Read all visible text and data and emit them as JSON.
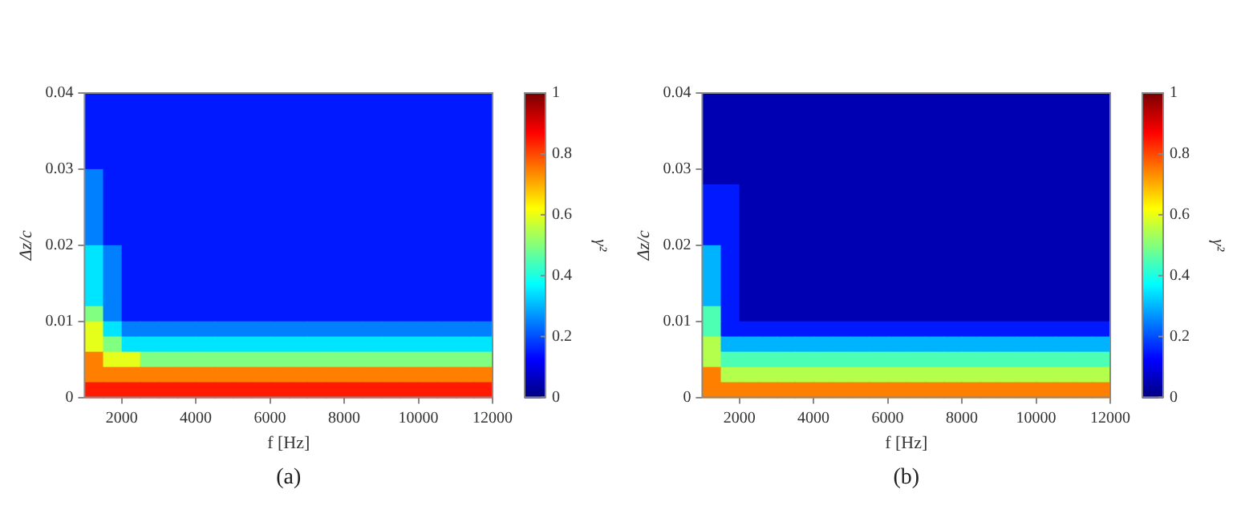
{
  "chart_data": [
    {
      "type": "heatmap",
      "xlabel": "f [Hz]",
      "ylabel": "Δz/c",
      "clabel": "γ²",
      "annotations": [
        "(a)"
      ],
      "x": [
        1250,
        1750,
        2250,
        2750,
        3250,
        3750,
        4250,
        4750,
        5250,
        5750,
        6250,
        6750,
        7250,
        7750,
        8250,
        8750,
        9250,
        9750,
        10250,
        10750,
        11250,
        11750
      ],
      "y": [
        0.039,
        0.037,
        0.035,
        0.033,
        0.031,
        0.029,
        0.027,
        0.025,
        0.023,
        0.021,
        0.019,
        0.017,
        0.015,
        0.013,
        0.011,
        0.009,
        0.007,
        0.005,
        0.003,
        0.001
      ],
      "xlim": [
        1000,
        12000
      ],
      "ylim": [
        0,
        0.04
      ],
      "xticks": [
        2000,
        4000,
        6000,
        8000,
        10000,
        12000
      ],
      "yticks": [
        0,
        0.01,
        0.02,
        0.03,
        0.04
      ],
      "clim": [
        0,
        1
      ],
      "cticks": [
        0,
        0.2,
        0.4,
        0.6,
        0.8,
        1
      ],
      "cells": [
        [
          0.15,
          0.15,
          0.15,
          0.15,
          0.15,
          0.15,
          0.15,
          0.15,
          0.15,
          0.15,
          0.15,
          0.15,
          0.15,
          0.15,
          0.15,
          0.15,
          0.15,
          0.15,
          0.15,
          0.15,
          0.15,
          0.15
        ],
        [
          0.15,
          0.15,
          0.15,
          0.15,
          0.15,
          0.15,
          0.15,
          0.15,
          0.15,
          0.15,
          0.15,
          0.15,
          0.15,
          0.15,
          0.15,
          0.15,
          0.15,
          0.15,
          0.15,
          0.15,
          0.15,
          0.15
        ],
        [
          0.15,
          0.15,
          0.15,
          0.15,
          0.15,
          0.15,
          0.15,
          0.15,
          0.15,
          0.15,
          0.15,
          0.15,
          0.15,
          0.15,
          0.15,
          0.15,
          0.15,
          0.15,
          0.15,
          0.15,
          0.15,
          0.15
        ],
        [
          0.15,
          0.15,
          0.15,
          0.15,
          0.15,
          0.15,
          0.15,
          0.15,
          0.15,
          0.15,
          0.15,
          0.15,
          0.15,
          0.15,
          0.15,
          0.15,
          0.15,
          0.15,
          0.15,
          0.15,
          0.15,
          0.15
        ],
        [
          0.15,
          0.15,
          0.15,
          0.15,
          0.15,
          0.15,
          0.15,
          0.15,
          0.15,
          0.15,
          0.15,
          0.15,
          0.15,
          0.15,
          0.15,
          0.15,
          0.15,
          0.15,
          0.15,
          0.15,
          0.15,
          0.15
        ],
        [
          0.25,
          0.15,
          0.15,
          0.15,
          0.15,
          0.15,
          0.15,
          0.15,
          0.15,
          0.15,
          0.15,
          0.15,
          0.15,
          0.15,
          0.15,
          0.15,
          0.15,
          0.15,
          0.15,
          0.15,
          0.15,
          0.15
        ],
        [
          0.25,
          0.15,
          0.15,
          0.15,
          0.15,
          0.15,
          0.15,
          0.15,
          0.15,
          0.15,
          0.15,
          0.15,
          0.15,
          0.15,
          0.15,
          0.15,
          0.15,
          0.15,
          0.15,
          0.15,
          0.15,
          0.15
        ],
        [
          0.25,
          0.15,
          0.15,
          0.15,
          0.15,
          0.15,
          0.15,
          0.15,
          0.15,
          0.15,
          0.15,
          0.15,
          0.15,
          0.15,
          0.15,
          0.15,
          0.15,
          0.15,
          0.15,
          0.15,
          0.15,
          0.15
        ],
        [
          0.25,
          0.15,
          0.15,
          0.15,
          0.15,
          0.15,
          0.15,
          0.15,
          0.15,
          0.15,
          0.15,
          0.15,
          0.15,
          0.15,
          0.15,
          0.15,
          0.15,
          0.15,
          0.15,
          0.15,
          0.15,
          0.15
        ],
        [
          0.25,
          0.15,
          0.15,
          0.15,
          0.15,
          0.15,
          0.15,
          0.15,
          0.15,
          0.15,
          0.15,
          0.15,
          0.15,
          0.15,
          0.15,
          0.15,
          0.15,
          0.15,
          0.15,
          0.15,
          0.15,
          0.15
        ],
        [
          0.35,
          0.25,
          0.15,
          0.15,
          0.15,
          0.15,
          0.15,
          0.15,
          0.15,
          0.15,
          0.15,
          0.15,
          0.15,
          0.15,
          0.15,
          0.15,
          0.15,
          0.15,
          0.15,
          0.15,
          0.15,
          0.15
        ],
        [
          0.35,
          0.25,
          0.15,
          0.15,
          0.15,
          0.15,
          0.15,
          0.15,
          0.15,
          0.15,
          0.15,
          0.15,
          0.15,
          0.15,
          0.15,
          0.15,
          0.15,
          0.15,
          0.15,
          0.15,
          0.15,
          0.15
        ],
        [
          0.35,
          0.25,
          0.15,
          0.15,
          0.15,
          0.15,
          0.15,
          0.15,
          0.15,
          0.15,
          0.15,
          0.15,
          0.15,
          0.15,
          0.15,
          0.15,
          0.15,
          0.15,
          0.15,
          0.15,
          0.15,
          0.15
        ],
        [
          0.35,
          0.25,
          0.15,
          0.15,
          0.15,
          0.15,
          0.15,
          0.15,
          0.15,
          0.15,
          0.15,
          0.15,
          0.15,
          0.15,
          0.15,
          0.15,
          0.15,
          0.15,
          0.15,
          0.15,
          0.15,
          0.15
        ],
        [
          0.5,
          0.25,
          0.15,
          0.15,
          0.15,
          0.15,
          0.15,
          0.15,
          0.15,
          0.15,
          0.15,
          0.15,
          0.15,
          0.15,
          0.15,
          0.15,
          0.15,
          0.15,
          0.15,
          0.15,
          0.15,
          0.15
        ],
        [
          0.6,
          0.35,
          0.25,
          0.25,
          0.25,
          0.25,
          0.25,
          0.25,
          0.25,
          0.25,
          0.25,
          0.25,
          0.25,
          0.25,
          0.25,
          0.25,
          0.25,
          0.25,
          0.25,
          0.25,
          0.25,
          0.25
        ],
        [
          0.6,
          0.5,
          0.35,
          0.35,
          0.35,
          0.35,
          0.35,
          0.35,
          0.35,
          0.35,
          0.35,
          0.35,
          0.35,
          0.35,
          0.35,
          0.35,
          0.35,
          0.35,
          0.35,
          0.35,
          0.35,
          0.35
        ],
        [
          0.75,
          0.6,
          0.6,
          0.5,
          0.5,
          0.5,
          0.5,
          0.5,
          0.5,
          0.5,
          0.5,
          0.5,
          0.5,
          0.5,
          0.5,
          0.5,
          0.5,
          0.5,
          0.5,
          0.5,
          0.5,
          0.5
        ],
        [
          0.75,
          0.75,
          0.75,
          0.75,
          0.75,
          0.75,
          0.75,
          0.75,
          0.75,
          0.75,
          0.75,
          0.75,
          0.75,
          0.75,
          0.75,
          0.75,
          0.75,
          0.75,
          0.75,
          0.75,
          0.75,
          0.75
        ],
        [
          0.85,
          0.85,
          0.85,
          0.85,
          0.85,
          0.85,
          0.85,
          0.85,
          0.85,
          0.85,
          0.85,
          0.85,
          0.85,
          0.85,
          0.85,
          0.85,
          0.85,
          0.85,
          0.85,
          0.85,
          0.85,
          0.85
        ]
      ]
    },
    {
      "type": "heatmap",
      "xlabel": "f [Hz]",
      "ylabel": "Δz/c",
      "clabel": "γ²",
      "annotations": [
        "(b)"
      ],
      "x": [
        1250,
        1750,
        2250,
        2750,
        3250,
        3750,
        4250,
        4750,
        5250,
        5750,
        6250,
        6750,
        7250,
        7750,
        8250,
        8750,
        9250,
        9750,
        10250,
        10750,
        11250,
        11750
      ],
      "y": [
        0.039,
        0.037,
        0.035,
        0.033,
        0.031,
        0.029,
        0.027,
        0.025,
        0.023,
        0.021,
        0.019,
        0.017,
        0.015,
        0.013,
        0.011,
        0.009,
        0.007,
        0.005,
        0.003,
        0.001
      ],
      "xlim": [
        1000,
        12000
      ],
      "ylim": [
        0,
        0.04
      ],
      "xticks": [
        2000,
        4000,
        6000,
        8000,
        10000,
        12000
      ],
      "yticks": [
        0,
        0.01,
        0.02,
        0.03,
        0.04
      ],
      "clim": [
        0,
        1
      ],
      "cticks": [
        0,
        0.2,
        0.4,
        0.6,
        0.8,
        1
      ],
      "cells": [
        [
          0.05,
          0.05,
          0.05,
          0.05,
          0.05,
          0.05,
          0.05,
          0.05,
          0.05,
          0.05,
          0.05,
          0.05,
          0.05,
          0.05,
          0.05,
          0.05,
          0.05,
          0.05,
          0.05,
          0.05,
          0.05,
          0.05
        ],
        [
          0.05,
          0.05,
          0.05,
          0.05,
          0.05,
          0.05,
          0.05,
          0.05,
          0.05,
          0.05,
          0.05,
          0.05,
          0.05,
          0.05,
          0.05,
          0.05,
          0.05,
          0.05,
          0.05,
          0.05,
          0.05,
          0.05
        ],
        [
          0.05,
          0.05,
          0.05,
          0.05,
          0.05,
          0.05,
          0.05,
          0.05,
          0.05,
          0.05,
          0.05,
          0.05,
          0.05,
          0.05,
          0.05,
          0.05,
          0.05,
          0.05,
          0.05,
          0.05,
          0.05,
          0.05
        ],
        [
          0.05,
          0.05,
          0.05,
          0.05,
          0.05,
          0.05,
          0.05,
          0.05,
          0.05,
          0.05,
          0.05,
          0.05,
          0.05,
          0.05,
          0.05,
          0.05,
          0.05,
          0.05,
          0.05,
          0.05,
          0.05,
          0.05
        ],
        [
          0.05,
          0.05,
          0.05,
          0.05,
          0.05,
          0.05,
          0.05,
          0.05,
          0.05,
          0.05,
          0.05,
          0.05,
          0.05,
          0.05,
          0.05,
          0.05,
          0.05,
          0.05,
          0.05,
          0.05,
          0.05,
          0.05
        ],
        [
          0.05,
          0.05,
          0.05,
          0.05,
          0.05,
          0.05,
          0.05,
          0.05,
          0.05,
          0.05,
          0.05,
          0.05,
          0.05,
          0.05,
          0.05,
          0.05,
          0.05,
          0.05,
          0.05,
          0.05,
          0.05,
          0.05
        ],
        [
          0.15,
          0.15,
          0.05,
          0.05,
          0.05,
          0.05,
          0.05,
          0.05,
          0.05,
          0.05,
          0.05,
          0.05,
          0.05,
          0.05,
          0.05,
          0.05,
          0.05,
          0.05,
          0.05,
          0.05,
          0.05,
          0.05
        ],
        [
          0.15,
          0.15,
          0.05,
          0.05,
          0.05,
          0.05,
          0.05,
          0.05,
          0.05,
          0.05,
          0.05,
          0.05,
          0.05,
          0.05,
          0.05,
          0.05,
          0.05,
          0.05,
          0.05,
          0.05,
          0.05,
          0.05
        ],
        [
          0.15,
          0.15,
          0.05,
          0.05,
          0.05,
          0.05,
          0.05,
          0.05,
          0.05,
          0.05,
          0.05,
          0.05,
          0.05,
          0.05,
          0.05,
          0.05,
          0.05,
          0.05,
          0.05,
          0.05,
          0.05,
          0.05
        ],
        [
          0.15,
          0.15,
          0.05,
          0.05,
          0.05,
          0.05,
          0.05,
          0.05,
          0.05,
          0.05,
          0.05,
          0.05,
          0.05,
          0.05,
          0.05,
          0.05,
          0.05,
          0.05,
          0.05,
          0.05,
          0.05,
          0.05
        ],
        [
          0.3,
          0.15,
          0.05,
          0.05,
          0.05,
          0.05,
          0.05,
          0.05,
          0.05,
          0.05,
          0.05,
          0.05,
          0.05,
          0.05,
          0.05,
          0.05,
          0.05,
          0.05,
          0.05,
          0.05,
          0.05,
          0.05
        ],
        [
          0.3,
          0.15,
          0.05,
          0.05,
          0.05,
          0.05,
          0.05,
          0.05,
          0.05,
          0.05,
          0.05,
          0.05,
          0.05,
          0.05,
          0.05,
          0.05,
          0.05,
          0.05,
          0.05,
          0.05,
          0.05,
          0.05
        ],
        [
          0.3,
          0.15,
          0.05,
          0.05,
          0.05,
          0.05,
          0.05,
          0.05,
          0.05,
          0.05,
          0.05,
          0.05,
          0.05,
          0.05,
          0.05,
          0.05,
          0.05,
          0.05,
          0.05,
          0.05,
          0.05,
          0.05
        ],
        [
          0.3,
          0.15,
          0.05,
          0.05,
          0.05,
          0.05,
          0.05,
          0.05,
          0.05,
          0.05,
          0.05,
          0.05,
          0.05,
          0.05,
          0.05,
          0.05,
          0.05,
          0.05,
          0.05,
          0.05,
          0.05,
          0.05
        ],
        [
          0.45,
          0.15,
          0.05,
          0.05,
          0.05,
          0.05,
          0.05,
          0.05,
          0.05,
          0.05,
          0.05,
          0.05,
          0.05,
          0.05,
          0.05,
          0.05,
          0.05,
          0.05,
          0.05,
          0.05,
          0.05,
          0.05
        ],
        [
          0.45,
          0.15,
          0.15,
          0.15,
          0.15,
          0.15,
          0.15,
          0.15,
          0.15,
          0.15,
          0.15,
          0.15,
          0.15,
          0.15,
          0.15,
          0.15,
          0.15,
          0.15,
          0.15,
          0.15,
          0.15,
          0.15
        ],
        [
          0.55,
          0.3,
          0.3,
          0.3,
          0.3,
          0.3,
          0.3,
          0.3,
          0.3,
          0.3,
          0.3,
          0.3,
          0.3,
          0.3,
          0.3,
          0.3,
          0.3,
          0.3,
          0.3,
          0.3,
          0.3,
          0.3
        ],
        [
          0.55,
          0.45,
          0.45,
          0.45,
          0.45,
          0.45,
          0.45,
          0.45,
          0.45,
          0.45,
          0.45,
          0.45,
          0.45,
          0.45,
          0.45,
          0.45,
          0.45,
          0.45,
          0.45,
          0.45,
          0.45,
          0.45
        ],
        [
          0.75,
          0.55,
          0.55,
          0.55,
          0.55,
          0.55,
          0.55,
          0.55,
          0.55,
          0.55,
          0.55,
          0.55,
          0.55,
          0.55,
          0.55,
          0.55,
          0.55,
          0.55,
          0.55,
          0.55,
          0.55,
          0.55
        ],
        [
          0.75,
          0.75,
          0.75,
          0.75,
          0.75,
          0.75,
          0.75,
          0.75,
          0.75,
          0.75,
          0.75,
          0.75,
          0.75,
          0.75,
          0.75,
          0.75,
          0.75,
          0.75,
          0.75,
          0.75,
          0.75,
          0.75
        ]
      ]
    }
  ]
}
